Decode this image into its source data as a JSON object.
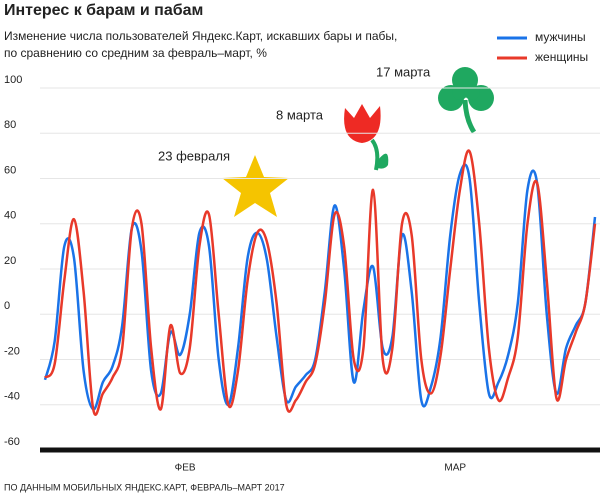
{
  "chart_data": {
    "type": "line",
    "title": "Интерес к барам и пабам",
    "subtitle": [
      "Изменение числа пользователей Яндекс.Карт, искавших бары и пабы,",
      "по сравнению со средним за февраль–март, %"
    ],
    "source": "ПО ДАННЫМ МОБИЛЬНЫХ ЯНДЕКС.КАРТ, ФЕВРАЛЬ–МАРТ 2017",
    "annotations": [
      "23 февраля",
      "8 марта",
      "17 марта"
    ],
    "categories": [
      null,
      null,
      null,
      null,
      null,
      null,
      null,
      null,
      null,
      null,
      null,
      null,
      null,
      null,
      "ФЕВ",
      null,
      null,
      null,
      null,
      null,
      null,
      null,
      null,
      null,
      null,
      null,
      null,
      null,
      null,
      null,
      null,
      null,
      null,
      null,
      null,
      null,
      null,
      null,
      null,
      null,
      null,
      null,
      "МАР",
      null,
      null,
      null,
      null,
      null,
      null,
      null,
      null,
      null,
      null,
      null,
      null,
      null,
      null,
      null
    ],
    "series": [
      {
        "name": "мужчины",
        "color": "#1a73e8",
        "values": [
          -29,
          -12,
          30,
          25,
          -25,
          -42,
          -30,
          -23,
          -5,
          38,
          28,
          -25,
          -35,
          -8,
          -18,
          0,
          36,
          30,
          -20,
          -40,
          -15,
          25,
          36,
          24,
          -10,
          -38,
          -32,
          -27,
          -20,
          10,
          48,
          20,
          -30,
          2,
          21,
          -15,
          -10,
          35,
          10,
          -38,
          -32,
          -10,
          35,
          62,
          60,
          5,
          -35,
          -30,
          -18,
          5,
          55,
          58,
          0,
          -35,
          -15,
          -5,
          5,
          43
        ]
      },
      {
        "name": "женщины",
        "color": "#e8392a",
        "values": [
          -28,
          -22,
          15,
          42,
          10,
          -42,
          -35,
          -28,
          -15,
          38,
          40,
          -15,
          -42,
          -5,
          -26,
          -15,
          30,
          44,
          0,
          -40,
          -25,
          15,
          36,
          32,
          5,
          -40,
          -38,
          -30,
          -22,
          5,
          44,
          30,
          -20,
          -15,
          55,
          -20,
          -15,
          40,
          35,
          -20,
          -35,
          -18,
          20,
          55,
          72,
          40,
          -15,
          -38,
          -28,
          -10,
          40,
          58,
          15,
          -37,
          -20,
          -8,
          5,
          40
        ]
      }
    ],
    "ylim": [
      -60,
      100
    ],
    "yticks": [
      -60,
      -40,
      -20,
      0,
      20,
      40,
      60,
      80,
      100
    ],
    "grid": true
  }
}
